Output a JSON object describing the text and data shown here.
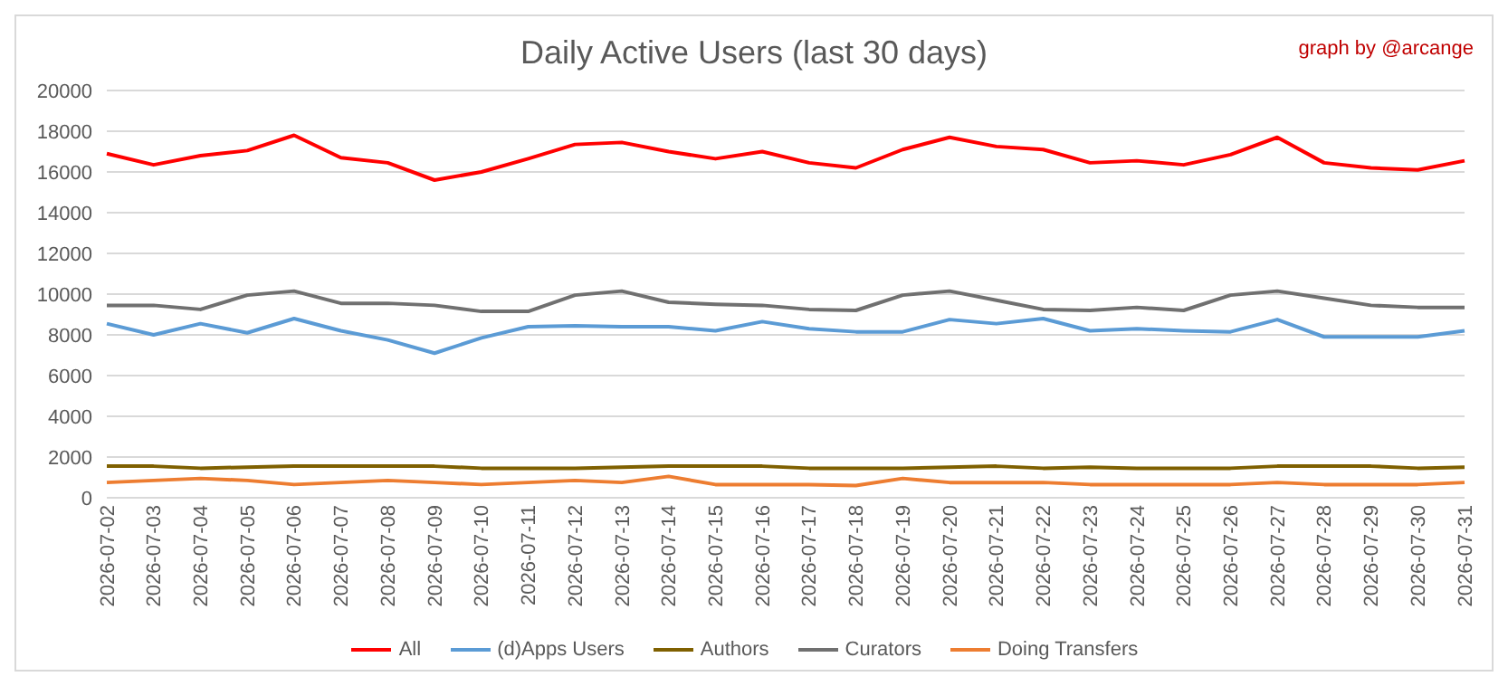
{
  "chart_data": {
    "type": "line",
    "title": "Daily Active Users (last 30 days)",
    "annotations": [
      "graph by @arcange"
    ],
    "categories": [
      "2026-07-02",
      "2026-07-03",
      "2026-07-04",
      "2026-07-05",
      "2026-07-06",
      "2026-07-07",
      "2026-07-08",
      "2026-07-09",
      "2026-07-10",
      "2026-07-11",
      "2026-07-12",
      "2026-07-13",
      "2026-07-14",
      "2026-07-15",
      "2026-07-16",
      "2026-07-17",
      "2026-07-18",
      "2026-07-19",
      "2026-07-20",
      "2026-07-21",
      "2026-07-22",
      "2026-07-23",
      "2026-07-24",
      "2026-07-25",
      "2026-07-26",
      "2026-07-27",
      "2026-07-28",
      "2026-07-29",
      "2026-07-30",
      "2026-07-31"
    ],
    "series": [
      {
        "name": "All",
        "color": "#ff0000",
        "values": [
          16900,
          16350,
          16800,
          17050,
          17800,
          16700,
          16450,
          15600,
          16000,
          16650,
          17350,
          17450,
          17000,
          16650,
          17000,
          16450,
          16200,
          17100,
          17700,
          17250,
          17100,
          16450,
          16550,
          16350,
          16850,
          17700,
          16450,
          16200,
          16100,
          16550
        ]
      },
      {
        "name": "(d)Apps Users",
        "color": "#5b9bd5",
        "values": [
          8550,
          8000,
          8550,
          8100,
          8800,
          8200,
          7750,
          7100,
          7850,
          8400,
          8450,
          8400,
          8400,
          8200,
          8650,
          8300,
          8150,
          8150,
          8750,
          8550,
          8800,
          8200,
          8300,
          8200,
          8150,
          8750,
          7900,
          7900,
          7900,
          8200
        ]
      },
      {
        "name": "Authors",
        "color": "#7f6000",
        "values": [
          1550,
          1550,
          1450,
          1500,
          1550,
          1550,
          1550,
          1550,
          1450,
          1450,
          1450,
          1500,
          1550,
          1550,
          1550,
          1450,
          1450,
          1450,
          1500,
          1550,
          1450,
          1500,
          1450,
          1450,
          1450,
          1550,
          1550,
          1550,
          1450,
          1500
        ]
      },
      {
        "name": "Curators",
        "color": "#707070",
        "values": [
          9450,
          9450,
          9250,
          9950,
          10150,
          9550,
          9550,
          9450,
          9150,
          9150,
          9950,
          10150,
          9600,
          9500,
          9450,
          9250,
          9200,
          9950,
          10150,
          9700,
          9250,
          9200,
          9350,
          9200,
          9950,
          10150,
          9800,
          9450,
          9350,
          9350
        ]
      },
      {
        "name": "Doing Transfers",
        "color": "#ed7d31",
        "values": [
          750,
          850,
          950,
          850,
          650,
          750,
          850,
          750,
          650,
          750,
          850,
          750,
          1050,
          650,
          650,
          650,
          600,
          950,
          750,
          750,
          750,
          650,
          650,
          650,
          650,
          750,
          650,
          650,
          650,
          750
        ]
      }
    ],
    "ylim": [
      0,
      20000
    ],
    "yticks": [
      0,
      2000,
      4000,
      6000,
      8000,
      10000,
      12000,
      14000,
      16000,
      18000,
      20000
    ],
    "grid": "y",
    "legend": "bottom",
    "marker": "none",
    "line_style": "solid"
  }
}
